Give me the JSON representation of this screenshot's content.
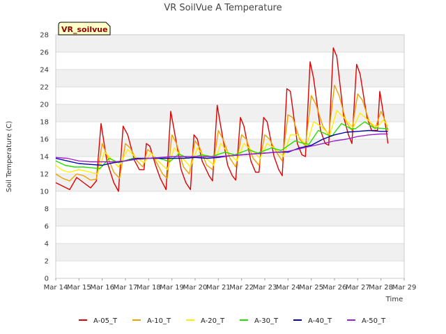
{
  "chart_data": {
    "type": "line",
    "title": "VR SoilVue A Temperature",
    "xlabel": "Time",
    "ylabel": "Soil Temperature (C)",
    "tag_label": "VR_soilvue",
    "x_tick_labels": [
      "Mar 14",
      "Mar 15",
      "Mar 16",
      "Mar 17",
      "Mar 18",
      "Mar 19",
      "Mar 20",
      "Mar 21",
      "Mar 22",
      "Mar 23",
      "Mar 24",
      "Mar 25",
      "Mar 26",
      "Mar 27",
      "Mar 28",
      "Mar 29"
    ],
    "xlim": [
      "Mar 14",
      "Mar 29"
    ],
    "ylim": [
      0,
      28
    ],
    "y_ticks": [
      0,
      2,
      4,
      6,
      8,
      10,
      12,
      14,
      16,
      18,
      20,
      22,
      24,
      26,
      28
    ],
    "grid": true,
    "legend_position": "bottom",
    "series": [
      {
        "name": "A-05_T",
        "color": "#dd0000",
        "points": [
          [
            0.0,
            11.0
          ],
          [
            0.3,
            10.6
          ],
          [
            0.6,
            10.2
          ],
          [
            0.9,
            11.6
          ],
          [
            1.2,
            11.0
          ],
          [
            1.5,
            10.4
          ],
          [
            1.75,
            11.2
          ],
          [
            1.95,
            17.8
          ],
          [
            2.2,
            13.5
          ],
          [
            2.5,
            11.0
          ],
          [
            2.7,
            10.0
          ],
          [
            2.9,
            17.5
          ],
          [
            3.1,
            16.5
          ],
          [
            3.4,
            13.5
          ],
          [
            3.6,
            12.5
          ],
          [
            3.8,
            12.5
          ],
          [
            3.9,
            15.5
          ],
          [
            4.05,
            15.2
          ],
          [
            4.3,
            13.0
          ],
          [
            4.5,
            11.5
          ],
          [
            4.75,
            10.2
          ],
          [
            4.95,
            19.2
          ],
          [
            5.1,
            17.0
          ],
          [
            5.4,
            12.5
          ],
          [
            5.6,
            11.0
          ],
          [
            5.8,
            10.2
          ],
          [
            5.95,
            16.5
          ],
          [
            6.1,
            16.0
          ],
          [
            6.3,
            13.5
          ],
          [
            6.6,
            11.8
          ],
          [
            6.75,
            11.2
          ],
          [
            6.95,
            19.9
          ],
          [
            7.1,
            17.5
          ],
          [
            7.4,
            13.0
          ],
          [
            7.6,
            11.8
          ],
          [
            7.75,
            11.3
          ],
          [
            7.95,
            18.5
          ],
          [
            8.1,
            17.5
          ],
          [
            8.4,
            13.5
          ],
          [
            8.6,
            12.2
          ],
          [
            8.75,
            12.2
          ],
          [
            8.95,
            18.5
          ],
          [
            9.1,
            18.0
          ],
          [
            9.4,
            14.0
          ],
          [
            9.6,
            12.5
          ],
          [
            9.75,
            11.8
          ],
          [
            9.95,
            21.8
          ],
          [
            10.1,
            21.5
          ],
          [
            10.4,
            15.5
          ],
          [
            10.6,
            14.2
          ],
          [
            10.75,
            14.0
          ],
          [
            10.95,
            24.9
          ],
          [
            11.1,
            23.0
          ],
          [
            11.4,
            17.0
          ],
          [
            11.6,
            15.5
          ],
          [
            11.75,
            15.3
          ],
          [
            11.95,
            26.5
          ],
          [
            12.1,
            25.5
          ],
          [
            12.4,
            18.5
          ],
          [
            12.6,
            16.5
          ],
          [
            12.75,
            15.5
          ],
          [
            12.95,
            24.6
          ],
          [
            13.1,
            23.5
          ],
          [
            13.4,
            18.5
          ],
          [
            13.6,
            17.0
          ],
          [
            13.85,
            17.0
          ],
          [
            13.95,
            21.5
          ],
          [
            14.1,
            19.0
          ],
          [
            14.2,
            17.5
          ],
          [
            14.3,
            15.5
          ]
        ]
      },
      {
        "name": "A-10_T",
        "color": "#f0a000",
        "points": [
          [
            0.0,
            12.0
          ],
          [
            0.3,
            11.5
          ],
          [
            0.6,
            11.2
          ],
          [
            0.9,
            12.0
          ],
          [
            1.2,
            11.8
          ],
          [
            1.5,
            11.3
          ],
          [
            1.75,
            11.4
          ],
          [
            2.0,
            15.5
          ],
          [
            2.2,
            14.2
          ],
          [
            2.5,
            12.2
          ],
          [
            2.75,
            11.5
          ],
          [
            3.0,
            15.5
          ],
          [
            3.2,
            15.0
          ],
          [
            3.5,
            13.5
          ],
          [
            3.75,
            12.8
          ],
          [
            3.95,
            14.8
          ],
          [
            4.1,
            14.5
          ],
          [
            4.4,
            13.0
          ],
          [
            4.6,
            12.0
          ],
          [
            4.8,
            11.5
          ],
          [
            5.0,
            16.5
          ],
          [
            5.2,
            15.5
          ],
          [
            5.5,
            12.8
          ],
          [
            5.75,
            12.0
          ],
          [
            6.0,
            15.8
          ],
          [
            6.2,
            15.0
          ],
          [
            6.5,
            13.0
          ],
          [
            6.75,
            12.5
          ],
          [
            7.0,
            17.0
          ],
          [
            7.2,
            16.0
          ],
          [
            7.5,
            13.8
          ],
          [
            7.75,
            12.8
          ],
          [
            8.0,
            16.5
          ],
          [
            8.2,
            16.0
          ],
          [
            8.5,
            13.8
          ],
          [
            8.75,
            13.0
          ],
          [
            9.0,
            16.5
          ],
          [
            9.2,
            16.0
          ],
          [
            9.5,
            14.5
          ],
          [
            9.75,
            13.5
          ],
          [
            10.0,
            18.8
          ],
          [
            10.2,
            18.5
          ],
          [
            10.5,
            16.0
          ],
          [
            10.75,
            15.2
          ],
          [
            11.0,
            21.0
          ],
          [
            11.2,
            20.0
          ],
          [
            11.5,
            17.5
          ],
          [
            11.75,
            16.5
          ],
          [
            12.0,
            22.2
          ],
          [
            12.2,
            21.0
          ],
          [
            12.5,
            18.0
          ],
          [
            12.75,
            17.0
          ],
          [
            13.0,
            21.2
          ],
          [
            13.2,
            20.5
          ],
          [
            13.5,
            18.0
          ],
          [
            13.75,
            17.2
          ],
          [
            14.0,
            19.2
          ],
          [
            14.2,
            18.0
          ],
          [
            14.3,
            17.0
          ]
        ]
      },
      {
        "name": "A-20_T",
        "color": "#ffee00",
        "points": [
          [
            0.0,
            13.0
          ],
          [
            0.3,
            12.4
          ],
          [
            0.6,
            12.2
          ],
          [
            1.0,
            12.5
          ],
          [
            1.5,
            12.2
          ],
          [
            1.8,
            12.0
          ],
          [
            2.1,
            14.5
          ],
          [
            2.3,
            14.0
          ],
          [
            2.7,
            12.8
          ],
          [
            3.1,
            14.8
          ],
          [
            3.4,
            14.0
          ],
          [
            3.8,
            13.3
          ],
          [
            4.1,
            14.4
          ],
          [
            4.4,
            13.5
          ],
          [
            4.8,
            12.5
          ],
          [
            5.1,
            15.0
          ],
          [
            5.4,
            14.0
          ],
          [
            5.8,
            12.8
          ],
          [
            6.1,
            15.0
          ],
          [
            6.4,
            14.0
          ],
          [
            6.8,
            13.0
          ],
          [
            7.1,
            15.5
          ],
          [
            7.4,
            14.5
          ],
          [
            7.8,
            13.5
          ],
          [
            8.1,
            15.5
          ],
          [
            8.4,
            14.8
          ],
          [
            8.8,
            13.8
          ],
          [
            9.1,
            15.5
          ],
          [
            9.4,
            15.0
          ],
          [
            9.8,
            14.0
          ],
          [
            10.1,
            16.5
          ],
          [
            10.4,
            16.5
          ],
          [
            10.8,
            15.3
          ],
          [
            11.1,
            18.0
          ],
          [
            11.4,
            17.5
          ],
          [
            11.8,
            16.5
          ],
          [
            12.1,
            19.3
          ],
          [
            12.4,
            18.5
          ],
          [
            12.8,
            17.3
          ],
          [
            13.1,
            19.0
          ],
          [
            13.4,
            18.3
          ],
          [
            13.8,
            17.3
          ],
          [
            14.1,
            18.2
          ],
          [
            14.3,
            17.5
          ]
        ]
      },
      {
        "name": "A-30_T",
        "color": "#22dd00",
        "points": [
          [
            0.0,
            13.5
          ],
          [
            0.4,
            13.0
          ],
          [
            0.8,
            12.8
          ],
          [
            1.2,
            12.8
          ],
          [
            1.6,
            12.7
          ],
          [
            1.9,
            12.6
          ],
          [
            2.3,
            13.8
          ],
          [
            2.7,
            13.3
          ],
          [
            3.3,
            13.8
          ],
          [
            3.7,
            13.7
          ],
          [
            4.3,
            13.9
          ],
          [
            4.7,
            13.6
          ],
          [
            4.9,
            13.4
          ],
          [
            5.3,
            14.3
          ],
          [
            5.7,
            13.8
          ],
          [
            6.3,
            14.2
          ],
          [
            6.7,
            14.0
          ],
          [
            7.3,
            14.5
          ],
          [
            7.7,
            14.2
          ],
          [
            8.3,
            14.8
          ],
          [
            8.7,
            14.4
          ],
          [
            9.3,
            15.0
          ],
          [
            9.7,
            14.7
          ],
          [
            10.3,
            15.8
          ],
          [
            10.7,
            15.5
          ],
          [
            10.9,
            15.4
          ],
          [
            11.3,
            17.0
          ],
          [
            11.7,
            16.5
          ],
          [
            11.9,
            16.4
          ],
          [
            12.3,
            17.8
          ],
          [
            12.7,
            17.2
          ],
          [
            12.9,
            17.2
          ],
          [
            13.3,
            18.0
          ],
          [
            13.7,
            17.3
          ],
          [
            14.3,
            17.2
          ]
        ]
      },
      {
        "name": "A-40_T",
        "color": "#0000aa",
        "points": [
          [
            0.0,
            13.8
          ],
          [
            0.5,
            13.5
          ],
          [
            1.0,
            13.2
          ],
          [
            1.5,
            13.1
          ],
          [
            2.0,
            13.0
          ],
          [
            2.5,
            13.3
          ],
          [
            3.0,
            13.5
          ],
          [
            3.5,
            13.8
          ],
          [
            4.0,
            13.8
          ],
          [
            4.5,
            13.8
          ],
          [
            5.0,
            13.8
          ],
          [
            5.5,
            13.8
          ],
          [
            6.0,
            13.9
          ],
          [
            6.5,
            13.8
          ],
          [
            7.0,
            13.9
          ],
          [
            7.5,
            14.1
          ],
          [
            8.0,
            14.2
          ],
          [
            8.5,
            14.3
          ],
          [
            9.0,
            14.4
          ],
          [
            9.5,
            14.5
          ],
          [
            10.0,
            14.5
          ],
          [
            10.5,
            15.0
          ],
          [
            11.0,
            15.3
          ],
          [
            11.5,
            16.0
          ],
          [
            12.0,
            16.5
          ],
          [
            12.5,
            16.8
          ],
          [
            13.0,
            16.9
          ],
          [
            13.5,
            17.0
          ],
          [
            14.0,
            16.9
          ],
          [
            14.3,
            16.9
          ]
        ]
      },
      {
        "name": "A-50_T",
        "color": "#9922cc",
        "points": [
          [
            0.0,
            13.9
          ],
          [
            0.5,
            13.8
          ],
          [
            1.0,
            13.5
          ],
          [
            1.5,
            13.4
          ],
          [
            2.0,
            13.4
          ],
          [
            2.5,
            13.4
          ],
          [
            3.0,
            13.5
          ],
          [
            3.5,
            13.7
          ],
          [
            4.0,
            13.8
          ],
          [
            4.5,
            13.9
          ],
          [
            5.0,
            14.0
          ],
          [
            5.5,
            14.0
          ],
          [
            6.0,
            14.0
          ],
          [
            6.5,
            14.0
          ],
          [
            7.0,
            14.0
          ],
          [
            7.5,
            14.1
          ],
          [
            8.0,
            14.2
          ],
          [
            8.5,
            14.3
          ],
          [
            9.0,
            14.4
          ],
          [
            9.5,
            14.5
          ],
          [
            10.0,
            14.6
          ],
          [
            10.5,
            14.9
          ],
          [
            11.0,
            15.2
          ],
          [
            11.5,
            15.5
          ],
          [
            12.0,
            15.8
          ],
          [
            12.5,
            16.0
          ],
          [
            13.0,
            16.3
          ],
          [
            13.5,
            16.5
          ],
          [
            14.0,
            16.6
          ],
          [
            14.3,
            16.6
          ]
        ]
      }
    ]
  }
}
